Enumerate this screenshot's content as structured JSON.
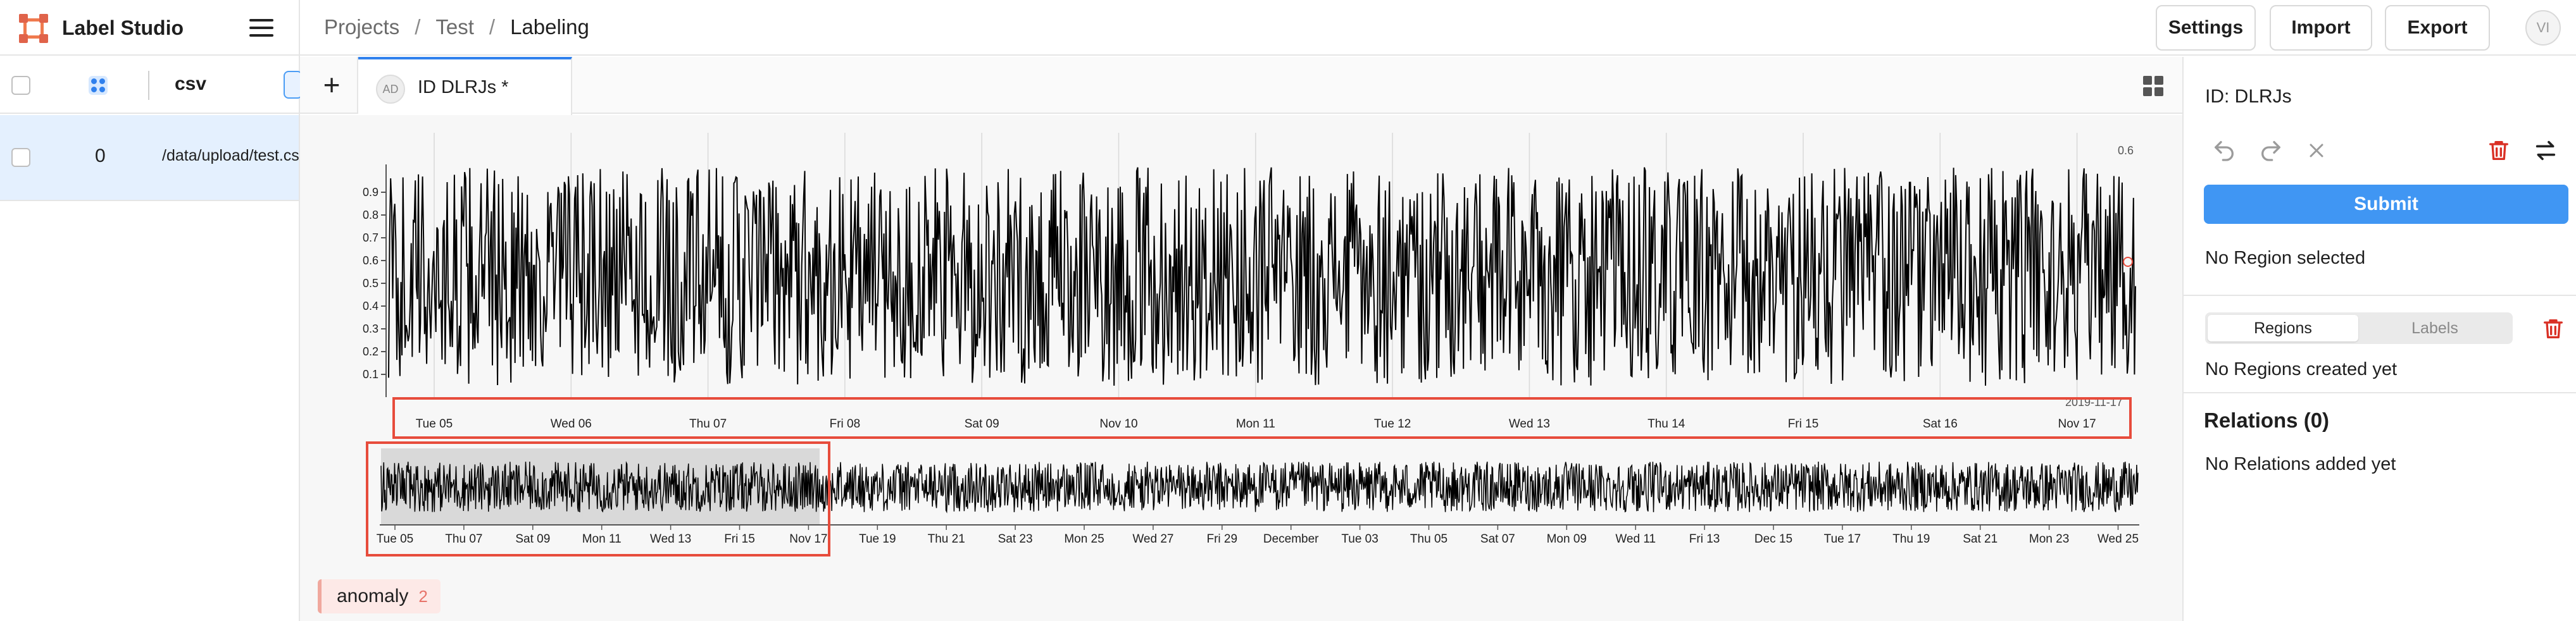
{
  "app": {
    "name": "Label Studio"
  },
  "breadcrumbs": [
    "Projects",
    "Test",
    "Labeling"
  ],
  "header_buttons": {
    "settings": "Settings",
    "import": "Import",
    "export": "Export"
  },
  "user": {
    "initials": "VI"
  },
  "data_list": {
    "column": "csv",
    "rows": [
      {
        "id": "0",
        "path": "/data/upload/test.csv"
      }
    ]
  },
  "task_tab": {
    "avatar": "AD",
    "title": "ID DLRJs *"
  },
  "timeseries": {
    "main_y_ticks": [
      "0.1",
      "0.2",
      "0.3",
      "0.4",
      "0.5",
      "0.6",
      "0.7",
      "0.8",
      "0.9"
    ],
    "cursor_value": "0.6",
    "main_x_ticks": [
      "Tue 05",
      "Wed 06",
      "Thu 07",
      "Fri 08",
      "Sat 09",
      "Nov 10",
      "Mon 11",
      "Tue 12",
      "Wed 13",
      "Thu 14",
      "Fri 15",
      "Sat 16",
      "Nov 17"
    ],
    "end_date": "2019-11-17",
    "overview_x_ticks": [
      "Tue 05",
      "Thu 07",
      "Sat 09",
      "Mon 11",
      "Wed 13",
      "Fri 15",
      "Nov 17",
      "Tue 19",
      "Thu 21",
      "Sat 23",
      "Mon 25",
      "Wed 27",
      "Fri 29",
      "December",
      "Tue 03",
      "Thu 05",
      "Sat 07",
      "Mon 09",
      "Wed 11",
      "Fri 13",
      "Dec 15",
      "Tue 17",
      "Thu 19",
      "Sat 21",
      "Mon 23",
      "Wed 25"
    ]
  },
  "labels": [
    {
      "name": "anomaly",
      "count": "2"
    }
  ],
  "annotation_panel": {
    "id_label": "ID: DLRJs",
    "submit": "Submit",
    "no_region": "No Region selected",
    "tabs": [
      "Regions",
      "Labels"
    ],
    "no_regions": "No Regions created yet",
    "relations_title": "Relations (0)",
    "no_relations": "No Relations added yet"
  },
  "colors": {
    "accent": "#4096f3",
    "brand": "#f07a4e",
    "highlight": "#e74c3c",
    "delete": "#d93025"
  },
  "icons": [
    "hamburger-menu-icon",
    "grid-icon",
    "plus-icon",
    "layout-grid-icon",
    "undo-icon",
    "redo-icon",
    "close-icon",
    "trash-icon",
    "swap-icon"
  ]
}
